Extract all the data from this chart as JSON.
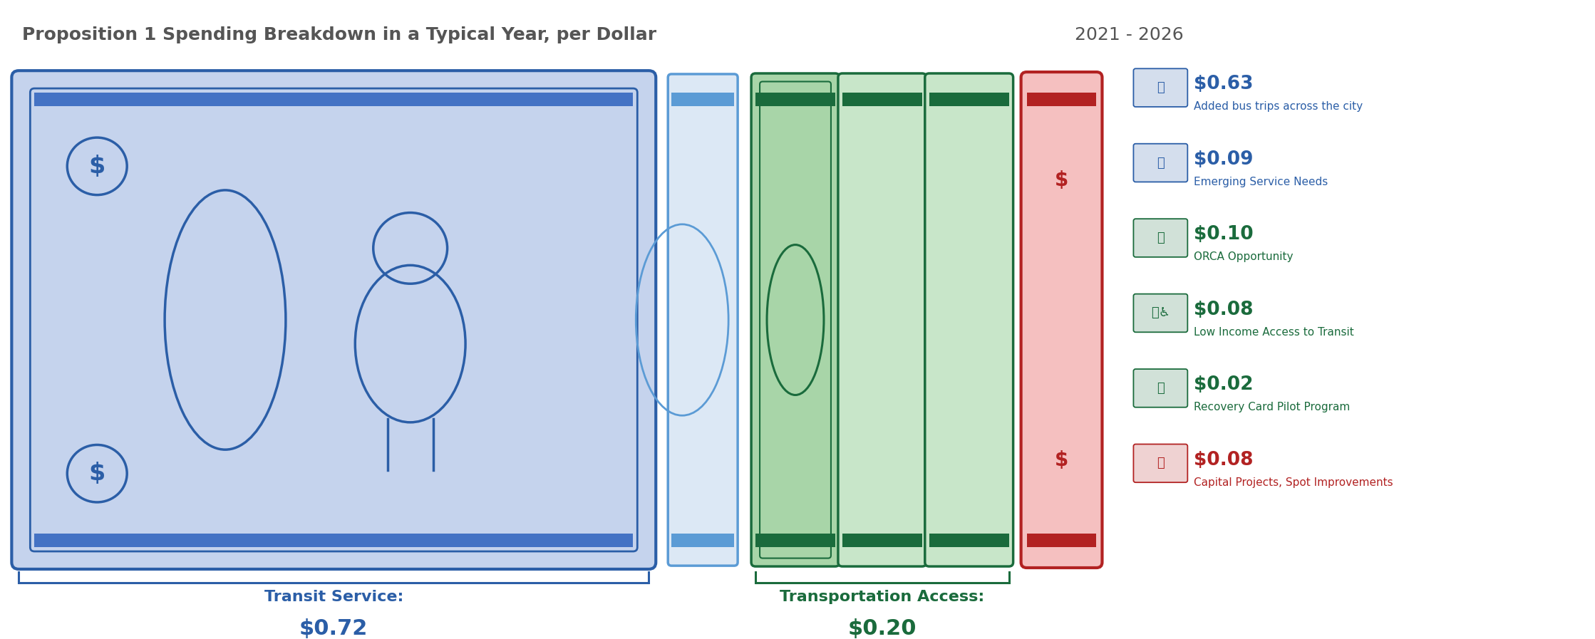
{
  "title_bold": "Proposition 1 Spending Breakdown in a Typical Year, per Dollar",
  "title_light": " 2021 - 2026",
  "bg_color": "#ffffff",
  "transit_service": {
    "label": "Transit Service:",
    "value": "$0.72",
    "color": "#2b5ea7",
    "bg_fill": "#c5d3ed",
    "border_color": "#2b5ea7",
    "stripe_color": "#4472c4"
  },
  "transport_access": {
    "label": "Transportation Access:",
    "value": "$0.20",
    "color": "#1a6b3c",
    "bg_fill": "#c8e6c9",
    "border_color": "#1a6b3c",
    "stripe_color": "#2e8b57"
  },
  "capital": {
    "label": "Capital Projects, Spot Improvements",
    "value": "$0.08",
    "color": "#b22222",
    "bg_fill": "#f5c0c0",
    "border_color": "#b22222"
  },
  "legend_items": [
    {
      "value": "$0.63",
      "label": "Added bus trips across the city",
      "value_color": "#2b5ea7",
      "label_color": "#2b5ea7"
    },
    {
      "value": "$0.09",
      "label": "Emerging Service Needs",
      "value_color": "#2b5ea7",
      "label_color": "#2b5ea7"
    },
    {
      "value": "$0.10",
      "label": "ORCA Opportunity",
      "value_color": "#1a6b3c",
      "label_color": "#1a6b3c"
    },
    {
      "value": "$0.08",
      "label": "Low Income Access to Transit",
      "value_color": "#1a6b3c",
      "label_color": "#1a6b3c"
    },
    {
      "value": "$0.02",
      "label": "Recovery Card Pilot Program",
      "value_color": "#1a6b3c",
      "label_color": "#1a6b3c"
    },
    {
      "value": "$0.08",
      "label": "Capital Projects, Spot Improvements",
      "value_color": "#b22222",
      "label_color": "#b22222"
    }
  ],
  "legend_fontsize_value": 19,
  "legend_fontsize_label": 11,
  "title_fontsize": 18,
  "bracket_label_fontsize": 16,
  "bracket_value_fontsize": 22
}
